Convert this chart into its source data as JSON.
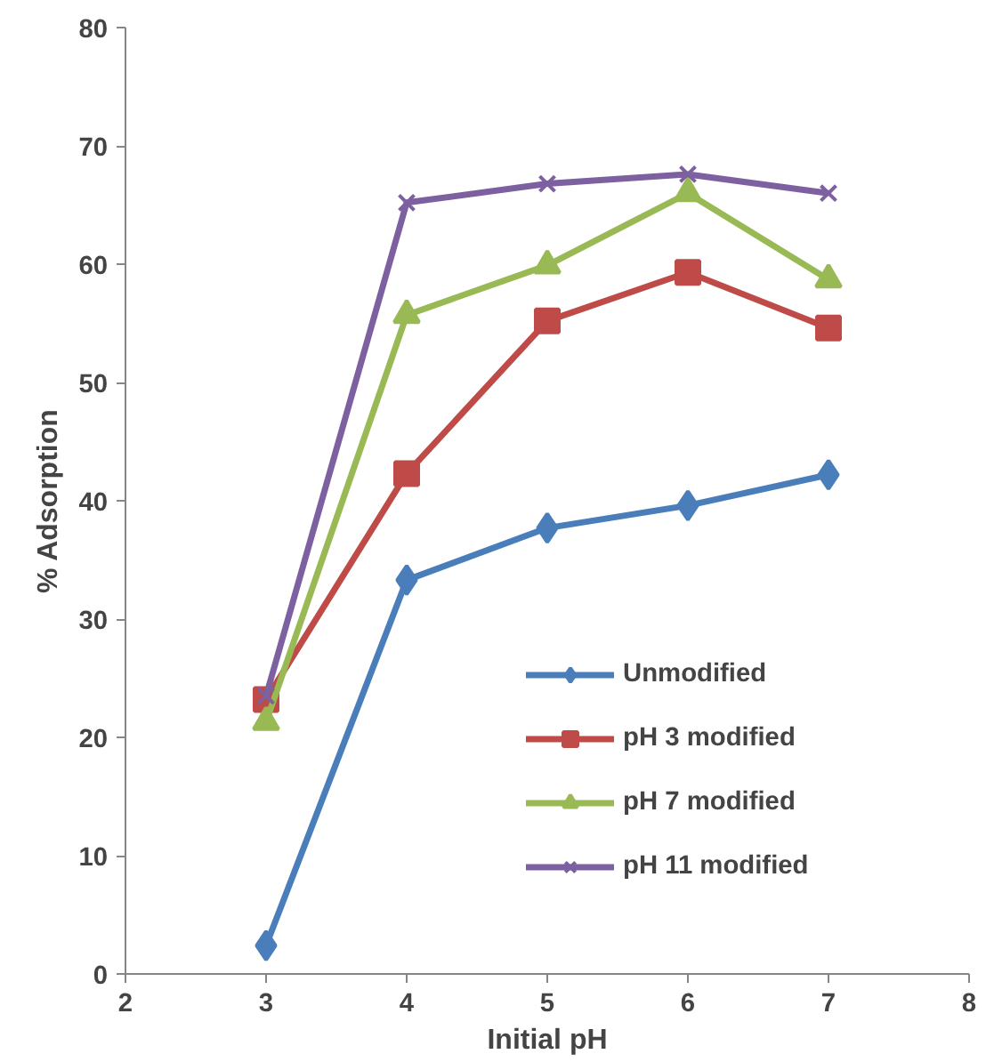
{
  "chart_data": {
    "type": "line",
    "xlabel": "Initial pH",
    "ylabel": "% Adsorption",
    "x": [
      3,
      4,
      5,
      6,
      7
    ],
    "xlim": [
      2,
      8
    ],
    "xticks": [
      2,
      3,
      4,
      5,
      6,
      7,
      8
    ],
    "ylim": [
      0,
      80
    ],
    "yticks": [
      0,
      10,
      20,
      30,
      40,
      50,
      60,
      70,
      80
    ],
    "grid": false,
    "legend": "right",
    "series": [
      {
        "name": "Unmodified",
        "color": "#4a7ebb",
        "marker": "diamond",
        "values": [
          2.4,
          33.3,
          37.7,
          39.6,
          42.2
        ]
      },
      {
        "name": "pH 3 modified",
        "color": "#be4b48",
        "marker": "square",
        "values": [
          23.2,
          42.3,
          55.2,
          59.3,
          54.6
        ]
      },
      {
        "name": "pH 7 modified",
        "color": "#98b954",
        "marker": "triangle",
        "values": [
          21.3,
          55.7,
          59.9,
          66.0,
          58.7
        ]
      },
      {
        "name": "pH 11 modified",
        "color": "#7d60a0",
        "marker": "cross",
        "values": [
          23.5,
          65.2,
          66.8,
          67.6,
          66.0
        ]
      }
    ]
  }
}
